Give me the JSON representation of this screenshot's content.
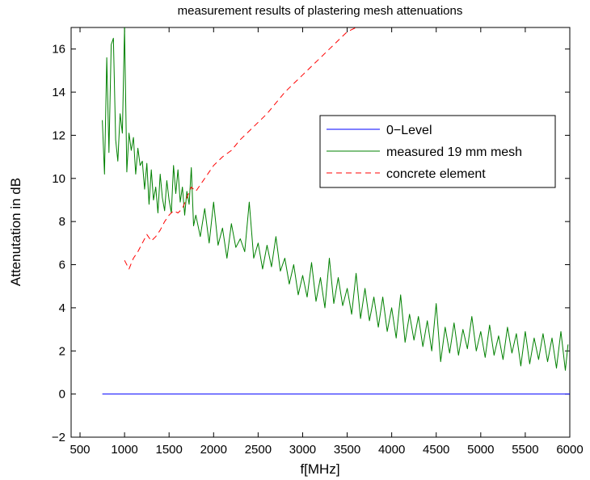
{
  "chart_data": {
    "type": "line",
    "title": "measurement results of plastering mesh attenuations",
    "xlabel": "f[MHz]",
    "ylabel": "Attenutation in dB",
    "xlim": [
      400,
      6000
    ],
    "ylim": [
      -2,
      17
    ],
    "xticks": [
      500,
      1000,
      1500,
      2000,
      2500,
      3000,
      3500,
      4000,
      4500,
      5000,
      5500,
      6000
    ],
    "yticks": [
      -2,
      0,
      2,
      4,
      6,
      8,
      10,
      12,
      14,
      16
    ],
    "grid": false,
    "legend_position": "inside-right",
    "series": [
      {
        "name": "0−Level",
        "color": "#0000ff",
        "dash": "solid",
        "x": [
          750,
          6000
        ],
        "y": [
          0,
          0
        ]
      },
      {
        "name": "measured 19 mm mesh",
        "color": "#008000",
        "dash": "solid",
        "x": [
          750,
          775,
          800,
          825,
          850,
          875,
          900,
          925,
          950,
          975,
          1000,
          1025,
          1050,
          1075,
          1100,
          1125,
          1150,
          1175,
          1200,
          1225,
          1250,
          1275,
          1300,
          1325,
          1350,
          1375,
          1400,
          1425,
          1450,
          1475,
          1500,
          1525,
          1550,
          1575,
          1600,
          1625,
          1650,
          1675,
          1700,
          1725,
          1750,
          1775,
          1800,
          1850,
          1900,
          1950,
          2000,
          2050,
          2100,
          2150,
          2200,
          2250,
          2300,
          2350,
          2400,
          2450,
          2500,
          2550,
          2600,
          2650,
          2700,
          2750,
          2800,
          2850,
          2900,
          2950,
          3000,
          3050,
          3100,
          3150,
          3200,
          3250,
          3300,
          3350,
          3400,
          3450,
          3500,
          3550,
          3600,
          3650,
          3700,
          3750,
          3800,
          3850,
          3900,
          3950,
          4000,
          4050,
          4100,
          4150,
          4200,
          4250,
          4300,
          4350,
          4400,
          4450,
          4500,
          4550,
          4600,
          4650,
          4700,
          4750,
          4800,
          4850,
          4900,
          4950,
          5000,
          5050,
          5100,
          5150,
          5200,
          5250,
          5300,
          5350,
          5400,
          5450,
          5500,
          5550,
          5600,
          5650,
          5700,
          5750,
          5800,
          5850,
          5900,
          5950,
          5980
        ],
        "y": [
          12.7,
          10.2,
          15.6,
          11.2,
          16.2,
          16.5,
          11.8,
          10.8,
          13.0,
          12.1,
          17.0,
          10.3,
          12.1,
          11.3,
          11.9,
          10.2,
          11.4,
          10.6,
          10.8,
          9.5,
          10.7,
          8.8,
          10.4,
          9.0,
          9.6,
          8.4,
          10.2,
          9.1,
          8.5,
          9.9,
          9.0,
          8.4,
          10.6,
          9.3,
          10.4,
          8.9,
          9.6,
          8.3,
          9.4,
          8.8,
          10.5,
          7.8,
          8.3,
          7.3,
          8.6,
          7.0,
          8.9,
          6.9,
          7.7,
          6.3,
          7.9,
          6.8,
          7.2,
          6.6,
          8.9,
          6.3,
          7.0,
          5.8,
          6.9,
          5.9,
          7.3,
          5.7,
          6.3,
          5.1,
          6.0,
          4.6,
          5.5,
          4.5,
          6.1,
          4.3,
          5.4,
          4.0,
          6.3,
          4.2,
          5.4,
          4.1,
          4.9,
          3.7,
          5.6,
          3.5,
          4.9,
          3.4,
          4.5,
          3.1,
          4.5,
          2.9,
          4.0,
          2.6,
          4.6,
          2.4,
          3.7,
          2.5,
          3.6,
          2.2,
          3.4,
          2.0,
          4.2,
          1.5,
          3.1,
          1.9,
          3.3,
          1.8,
          3.0,
          2.1,
          3.6,
          2.0,
          2.9,
          1.7,
          3.2,
          1.8,
          2.7,
          1.6,
          3.1,
          1.9,
          2.8,
          1.3,
          2.9,
          1.4,
          2.6,
          1.6,
          2.8,
          1.5,
          2.6,
          1.2,
          2.9,
          1.1,
          2.3
        ]
      },
      {
        "name": "concrete element",
        "color": "#ff0000",
        "dash": "dashed",
        "x": [
          1000,
          1050,
          1100,
          1150,
          1200,
          1250,
          1300,
          1350,
          1400,
          1450,
          1500,
          1550,
          1600,
          1650,
          1700,
          1750,
          1800,
          1850,
          1900,
          1950,
          2000,
          2100,
          2200,
          2300,
          2400,
          2500,
          2600,
          2700,
          2800,
          2900,
          3000,
          3100,
          3200,
          3300,
          3400,
          3500,
          3600
        ],
        "y": [
          6.2,
          5.8,
          6.3,
          6.6,
          7.0,
          7.4,
          7.1,
          7.3,
          7.6,
          8.0,
          8.3,
          8.5,
          8.4,
          8.6,
          9.1,
          9.6,
          9.4,
          9.7,
          10.0,
          10.3,
          10.6,
          11.0,
          11.3,
          11.8,
          12.2,
          12.6,
          13.0,
          13.5,
          14.0,
          14.4,
          14.8,
          15.2,
          15.6,
          16.0,
          16.4,
          16.8,
          17.0
        ]
      }
    ]
  }
}
